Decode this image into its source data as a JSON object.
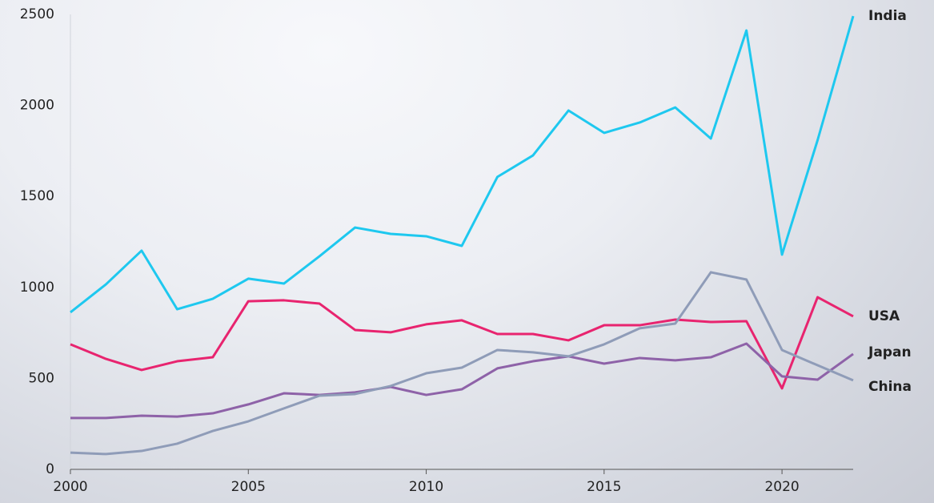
{
  "chart_data": {
    "type": "line",
    "x": [
      2000,
      2001,
      2002,
      2003,
      2004,
      2005,
      2006,
      2007,
      2008,
      2009,
      2010,
      2011,
      2012,
      2013,
      2014,
      2015,
      2016,
      2017,
      2018,
      2019,
      2020,
      2021,
      2022
    ],
    "series": [
      {
        "name": "India",
        "color": "#1ec8ef",
        "values": [
          863,
          1017,
          1202,
          880,
          937,
          1048,
          1021,
          1171,
          1329,
          1294,
          1281,
          1228,
          1607,
          1725,
          1972,
          1849,
          1906,
          1989,
          1818,
          2412,
          1180,
          1809,
          2491
        ]
      },
      {
        "name": "USA",
        "color": "#e8246f",
        "values": [
          687,
          607,
          546,
          594,
          616,
          924,
          929,
          911,
          766,
          753,
          797,
          819,
          744,
          744,
          709,
          792,
          792,
          823,
          810,
          814,
          445,
          946,
          841
        ]
      },
      {
        "name": "Japan",
        "color": "#8e62a8",
        "values": [
          282,
          282,
          295,
          290,
          308,
          357,
          418,
          409,
          423,
          453,
          409,
          440,
          555,
          594,
          621,
          581,
          612,
          599,
          616,
          691,
          511,
          493,
          634
        ]
      },
      {
        "name": "China",
        "color": "#8f9cb8",
        "values": [
          92,
          84,
          101,
          141,
          211,
          264,
          335,
          405,
          414,
          458,
          528,
          559,
          656,
          643,
          621,
          687,
          775,
          801,
          1083,
          1043,
          656,
          572,
          489
        ]
      }
    ],
    "xlim": [
      2000,
      2022
    ],
    "xticks": [
      2000,
      2005,
      2010,
      2015,
      2020
    ],
    "ylim": [
      0,
      2500
    ],
    "yticks": [
      0,
      500,
      1000,
      1500,
      2000,
      2500
    ]
  }
}
